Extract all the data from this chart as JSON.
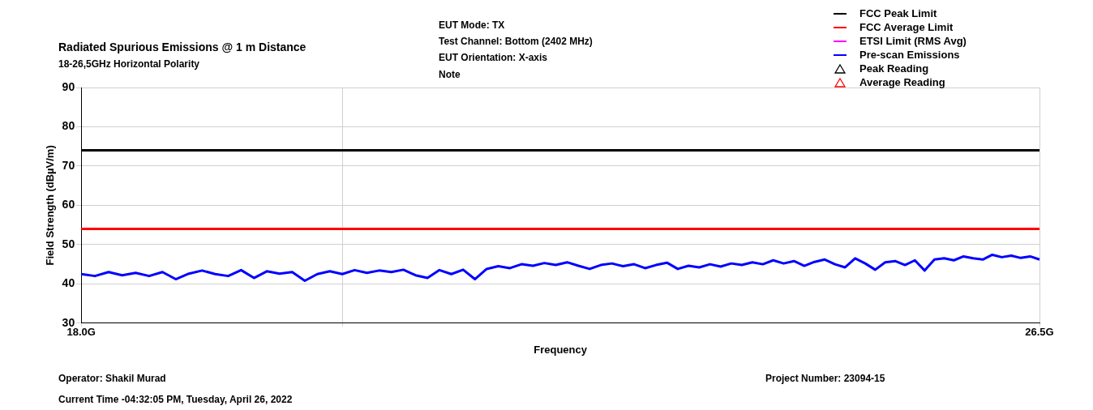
{
  "chart_data": {
    "type": "line",
    "title": "Radiated Spurious Emissions @ 1 m Distance",
    "subtitle": "18-26,5GHz Horizontal Polarity",
    "xlabel": "Frequency",
    "ylabel": "Field Strength (dBµV/m)",
    "log": "x",
    "xlim": [
      18,
      26.5
    ],
    "xticks": [
      {
        "value": 18,
        "label": "18.0G"
      },
      {
        "value": 20,
        "label": null
      },
      {
        "value": 26.5,
        "label": "26.5G"
      }
    ],
    "ylim": [
      30,
      90
    ],
    "yticks": [
      30,
      40,
      50,
      60,
      70,
      80,
      90
    ],
    "grid": true,
    "legend": "top right",
    "x": [
      18.0,
      18.1,
      18.2,
      18.3,
      18.4,
      18.5,
      18.6,
      18.7,
      18.8,
      18.9,
      19.0,
      19.1,
      19.2,
      19.3,
      19.4,
      19.5,
      19.6,
      19.7,
      19.8,
      19.9,
      20.0,
      20.1,
      20.2,
      20.3,
      20.4,
      20.5,
      20.6,
      20.7,
      20.8,
      20.9,
      21.0,
      21.1,
      21.2,
      21.3,
      21.4,
      21.5,
      21.6,
      21.7,
      21.8,
      21.9,
      22.0,
      22.1,
      22.2,
      22.3,
      22.4,
      22.5,
      22.6,
      22.7,
      22.8,
      22.9,
      23.0,
      23.1,
      23.2,
      23.3,
      23.4,
      23.5,
      23.6,
      23.7,
      23.8,
      23.9,
      24.0,
      24.1,
      24.2,
      24.3,
      24.4,
      24.5,
      24.6,
      24.7,
      24.8,
      24.9,
      25.0,
      25.1,
      25.2,
      25.3,
      25.4,
      25.5,
      25.6,
      25.7,
      25.8,
      25.9,
      26.0,
      26.1,
      26.2,
      26.3,
      26.4,
      26.5
    ],
    "series": [
      {
        "name": "FCC Peak Limit",
        "color": "#000000",
        "values": [
          74,
          74,
          74,
          74,
          74,
          74,
          74,
          74,
          74,
          74,
          74,
          74,
          74,
          74,
          74,
          74,
          74,
          74,
          74,
          74,
          74,
          74,
          74,
          74,
          74,
          74,
          74,
          74,
          74,
          74,
          74,
          74,
          74,
          74,
          74,
          74,
          74,
          74,
          74,
          74,
          74,
          74,
          74,
          74,
          74,
          74,
          74,
          74,
          74,
          74,
          74,
          74,
          74,
          74,
          74,
          74,
          74,
          74,
          74,
          74,
          74,
          74,
          74,
          74,
          74,
          74,
          74,
          74,
          74,
          74,
          74,
          74,
          74,
          74,
          74,
          74,
          74,
          74,
          74,
          74,
          74,
          74,
          74,
          74,
          74,
          74
        ],
        "marker": "none",
        "line_style": "solid"
      },
      {
        "name": "FCC Average Limit",
        "color": "#ff0000",
        "values": [
          54,
          54,
          54,
          54,
          54,
          54,
          54,
          54,
          54,
          54,
          54,
          54,
          54,
          54,
          54,
          54,
          54,
          54,
          54,
          54,
          54,
          54,
          54,
          54,
          54,
          54,
          54,
          54,
          54,
          54,
          54,
          54,
          54,
          54,
          54,
          54,
          54,
          54,
          54,
          54,
          54,
          54,
          54,
          54,
          54,
          54,
          54,
          54,
          54,
          54,
          54,
          54,
          54,
          54,
          54,
          54,
          54,
          54,
          54,
          54,
          54,
          54,
          54,
          54,
          54,
          54,
          54,
          54,
          54,
          54,
          54,
          54,
          54,
          54,
          54,
          54,
          54,
          54,
          54,
          54,
          54,
          54,
          54,
          54,
          54,
          54
        ],
        "marker": "none",
        "line_style": "solid"
      },
      {
        "name": "ETSI Limit (RMS Avg)",
        "color": "#ff00ff",
        "values": [
          null,
          null,
          null,
          null,
          null,
          null,
          null,
          null,
          null,
          null,
          null,
          null,
          null,
          null,
          null,
          null,
          null,
          null,
          null,
          null,
          null,
          null,
          null,
          null,
          null,
          null,
          null,
          null,
          null,
          null,
          null,
          null,
          null,
          null,
          null,
          null,
          null,
          null,
          null,
          null,
          null,
          null,
          null,
          null,
          null,
          null,
          null,
          null,
          null,
          null,
          null,
          null,
          null,
          null,
          null,
          null,
          null,
          null,
          null,
          null,
          null,
          null,
          null,
          null,
          null,
          null,
          null,
          null,
          null,
          null,
          null,
          null,
          null,
          null,
          null,
          null,
          null,
          null,
          null,
          null,
          null,
          null,
          null,
          null,
          null,
          null
        ],
        "marker": "none",
        "line_style": "solid"
      },
      {
        "name": "Pre-scan Emissions",
        "color": "#0000ff",
        "marker": "none",
        "line_style": "solid",
        "values": [
          42.5,
          42.0,
          43.0,
          42.2,
          42.8,
          42.0,
          43.0,
          41.2,
          42.6,
          43.4,
          42.5,
          42.0,
          43.5,
          41.5,
          43.2,
          42.6,
          43.0,
          40.8,
          42.5,
          43.2,
          42.5,
          43.5,
          42.8,
          43.4,
          43.0,
          43.6,
          42.2,
          41.5,
          43.5,
          42.5,
          43.6,
          41.2,
          43.8,
          44.5,
          44.0,
          45.0,
          44.6,
          45.3,
          44.8,
          45.5,
          44.6,
          43.8,
          44.8,
          45.2,
          44.5,
          45.0,
          44.0,
          44.8,
          45.4,
          43.8,
          44.6,
          44.2,
          45.0,
          44.4,
          45.2,
          44.8,
          45.5,
          45.0,
          46.0,
          45.2,
          45.8,
          44.6,
          45.6,
          46.2,
          45.0,
          44.2,
          46.5,
          45.2,
          43.6,
          45.5,
          45.8,
          44.8,
          46.0,
          43.4,
          46.2,
          46.5,
          46.0,
          47.0,
          46.5,
          46.2,
          47.4,
          46.8,
          47.2,
          46.6,
          47.0,
          46.2
        ]
      },
      {
        "name": "Peak Reading",
        "type": "scatter",
        "color": "#000000",
        "marker": "triangle",
        "values": [
          null,
          null,
          null,
          null,
          null,
          null,
          null,
          null,
          null,
          null,
          null,
          null,
          null,
          null,
          null,
          null,
          null,
          null,
          null,
          null,
          null,
          null,
          null,
          null,
          null,
          null,
          null,
          null,
          null,
          null,
          null,
          null,
          null,
          null,
          null,
          null,
          null,
          null,
          null,
          null,
          null,
          null,
          null,
          null,
          null,
          null,
          null,
          null,
          null,
          null,
          null,
          null,
          null,
          null,
          null,
          null,
          null,
          null,
          null,
          null,
          null,
          null,
          null,
          null,
          null,
          null,
          null,
          null,
          null,
          null,
          null,
          null,
          null,
          null,
          null,
          null,
          null,
          null,
          null,
          null,
          null,
          null,
          null,
          null,
          null,
          null
        ]
      },
      {
        "name": "Average Reading",
        "type": "scatter",
        "color": "#ff0000",
        "marker": "triangle",
        "values": [
          null,
          null,
          null,
          null,
          null,
          null,
          null,
          null,
          null,
          null,
          null,
          null,
          null,
          null,
          null,
          null,
          null,
          null,
          null,
          null,
          null,
          null,
          null,
          null,
          null,
          null,
          null,
          null,
          null,
          null,
          null,
          null,
          null,
          null,
          null,
          null,
          null,
          null,
          null,
          null,
          null,
          null,
          null,
          null,
          null,
          null,
          null,
          null,
          null,
          null,
          null,
          null,
          null,
          null,
          null,
          null,
          null,
          null,
          null,
          null,
          null,
          null,
          null,
          null,
          null,
          null,
          null,
          null,
          null,
          null,
          null,
          null,
          null,
          null,
          null,
          null,
          null,
          null,
          null,
          null,
          null,
          null,
          null,
          null,
          null,
          null
        ]
      }
    ],
    "annotations": [
      "EUT Mode: TX",
      "Test Channel: Bottom (2402 MHz)",
      "EUT Orientation: X-axis",
      "Note",
      "Operator: Shakil Murad",
      "Current Time -04:32:05 PM, Tuesday, April 26, 2022",
      "Project Number: 23094-15"
    ]
  }
}
